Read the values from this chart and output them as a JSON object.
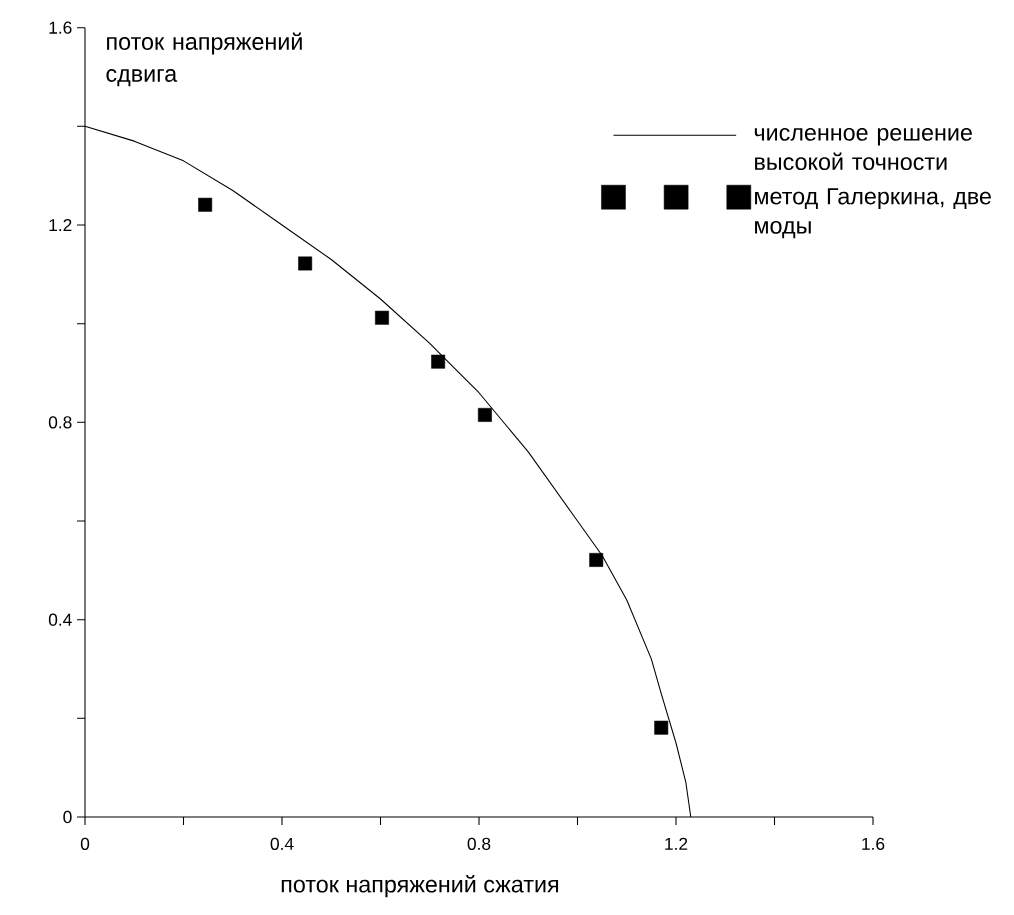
{
  "chart_data": {
    "type": "line",
    "xlabel": "поток напряжений сжатия",
    "ylabel": "поток напряжений сдвига",
    "xlim": [
      0,
      1.6
    ],
    "ylim": [
      0,
      1.6
    ],
    "xticks": [
      0,
      {
        "value": 0.2,
        "label": null
      },
      0.4,
      {
        "value": 0.6,
        "label": null
      },
      0.8,
      {
        "value": 1.0,
        "label": null
      },
      1.2,
      {
        "value": 1.4,
        "label": null
      },
      1.6
    ],
    "yticks": [
      0,
      {
        "value": 0.2,
        "label": null
      },
      0.4,
      {
        "value": 0.6,
        "label": null
      },
      0.8,
      {
        "value": 1.0,
        "label": null
      },
      1.2,
      {
        "value": 1.4,
        "label": null
      },
      1.6
    ],
    "grid": false,
    "legend": "top right",
    "series": [
      {
        "name": "численное решение высокой точности",
        "type": "line",
        "color": "#000000",
        "marker": "none",
        "line_style": "solid",
        "x": [
          0,
          0.1,
          0.2,
          0.3,
          0.4,
          0.5,
          0.6,
          0.7,
          0.75,
          0.8,
          0.9,
          1.0,
          1.05,
          1.1,
          1.15,
          1.17,
          1.2,
          1.22,
          1.23
        ],
        "values": [
          1.4,
          1.37,
          1.33,
          1.27,
          1.2,
          1.13,
          1.05,
          0.96,
          0.91,
          0.86,
          0.74,
          0.6,
          0.53,
          0.44,
          0.32,
          0.25,
          0.15,
          0.07,
          0
        ]
      },
      {
        "name": "метод Галеркина, две моды",
        "type": "scatter",
        "color": "#000000",
        "marker": "square",
        "x": [
          0.244,
          0.447,
          0.603,
          0.717,
          0.812,
          1.038,
          1.17
        ],
        "values": [
          1.241,
          1.122,
          1.012,
          0.923,
          0.815,
          0.521,
          0.181
        ]
      }
    ]
  }
}
